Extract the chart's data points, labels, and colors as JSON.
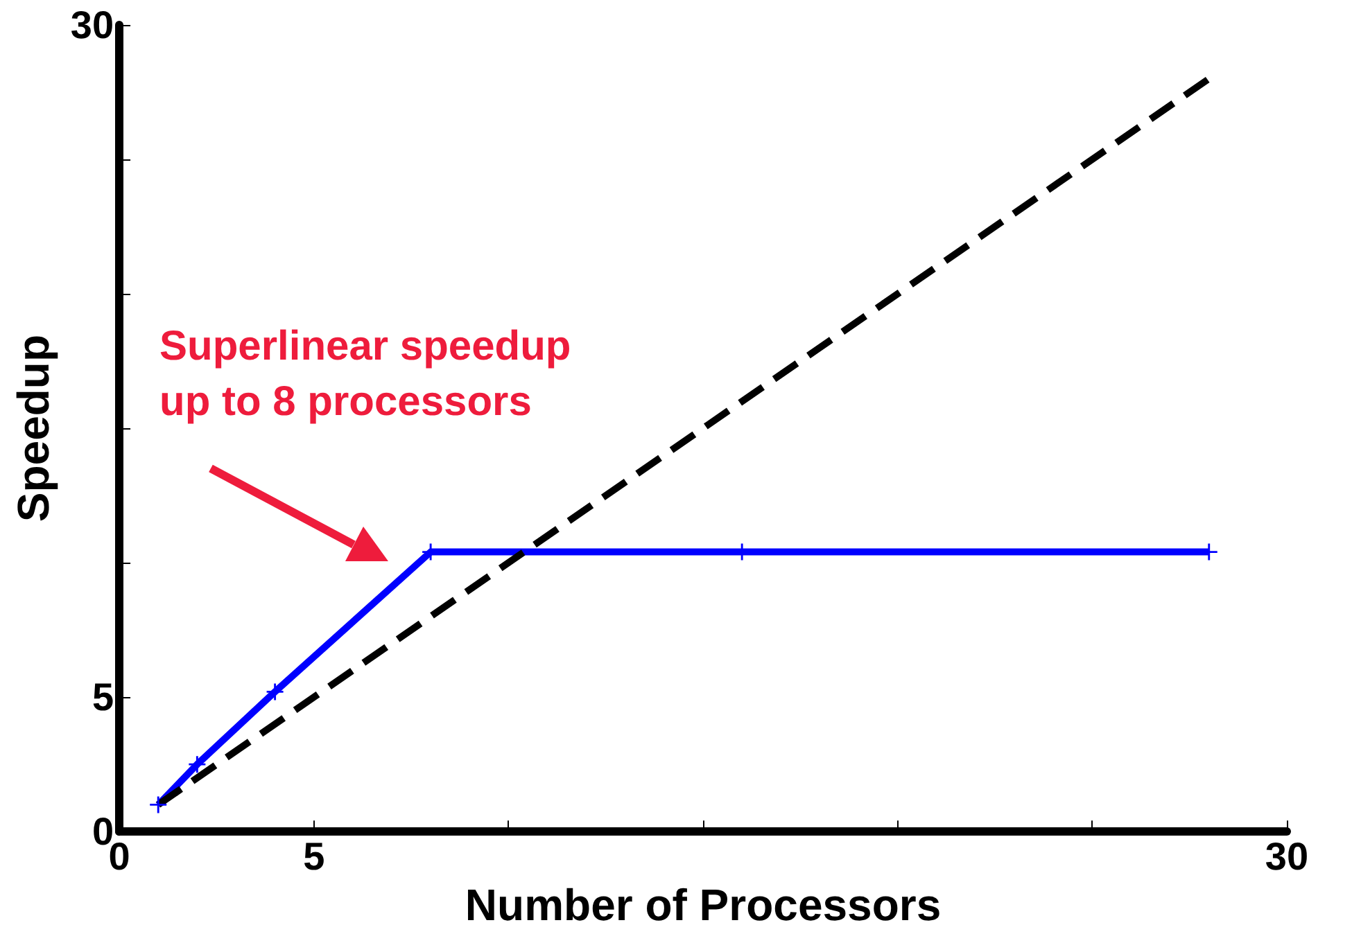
{
  "chart_data": {
    "type": "line",
    "xlabel": "Number of Processors",
    "ylabel": "Speedup",
    "xlim": [
      0,
      30
    ],
    "ylim": [
      0,
      30
    ],
    "xticks": [
      0,
      5,
      {
        "value": 10,
        "label": null
      },
      {
        "value": 15,
        "label": null
      },
      {
        "value": 20,
        "label": null
      },
      {
        "value": 25,
        "label": null
      },
      30
    ],
    "yticks": [
      0,
      5,
      {
        "value": 10,
        "label": null
      },
      {
        "value": 15,
        "label": null
      },
      {
        "value": 20,
        "label": null
      },
      {
        "value": 25,
        "label": null
      },
      30
    ],
    "series": [
      {
        "color": "#0000ff",
        "x": [
          1,
          2,
          4,
          8,
          16,
          28
        ],
        "values": [
          1,
          2.5,
          5.2,
          10.4,
          10.4,
          10.4
        ],
        "marker": "cross",
        "line_style": "solid"
      },
      {
        "color": "#000000",
        "x": [
          1,
          28
        ],
        "values": [
          1,
          28
        ],
        "marker": "none",
        "line_style": "dashed"
      }
    ],
    "annotations": [
      "Superlinear speedup\nup to 8 processors"
    ],
    "grid": false
  }
}
